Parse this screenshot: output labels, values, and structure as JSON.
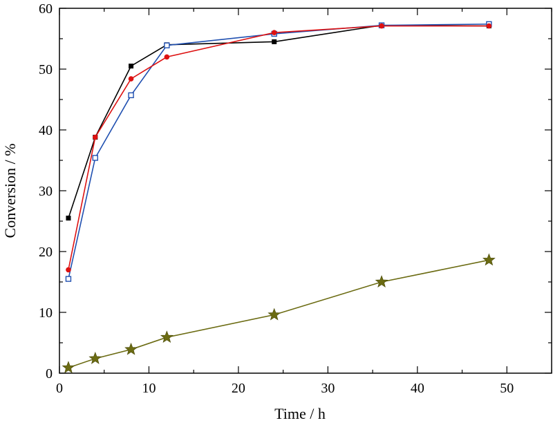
{
  "chart_data": {
    "type": "line",
    "title": "",
    "xlabel": "Time / h",
    "ylabel": "Conversion / %",
    "xlim": [
      0,
      55
    ],
    "ylim": [
      0,
      60
    ],
    "x_ticks": [
      0,
      10,
      20,
      30,
      40,
      50
    ],
    "y_ticks": [
      0,
      10,
      20,
      30,
      40,
      50,
      60
    ],
    "x_tick_labels": [
      "0",
      "10",
      "20",
      "30",
      "40",
      "50"
    ],
    "y_tick_labels": [
      "0",
      "10",
      "20",
      "30",
      "40",
      "50",
      "60"
    ],
    "grid": false,
    "legend": "none",
    "series": [
      {
        "color": "#000000",
        "marker": "filled-square",
        "x": [
          1,
          4,
          8,
          12,
          24,
          36,
          48
        ],
        "y": [
          25.5,
          38.8,
          50.5,
          54.0,
          54.5,
          57.2,
          57.1
        ]
      },
      {
        "color": "#1f4fb0",
        "marker": "open-square",
        "x": [
          1,
          4,
          8,
          12,
          24,
          36,
          48
        ],
        "y": [
          15.5,
          35.4,
          45.7,
          53.9,
          55.8,
          57.2,
          57.4
        ]
      },
      {
        "color": "#dd1111",
        "marker": "filled-circle",
        "x": [
          1,
          4,
          8,
          12,
          24,
          36,
          48
        ],
        "y": [
          17.0,
          38.8,
          48.4,
          52.0,
          56.0,
          57.1,
          57.1
        ]
      },
      {
        "color": "#6b6b12",
        "marker": "star",
        "x": [
          1,
          4,
          8,
          12,
          24,
          36,
          48
        ],
        "y": [
          0.9,
          2.4,
          3.9,
          5.9,
          9.6,
          15.0,
          18.6
        ]
      }
    ]
  }
}
